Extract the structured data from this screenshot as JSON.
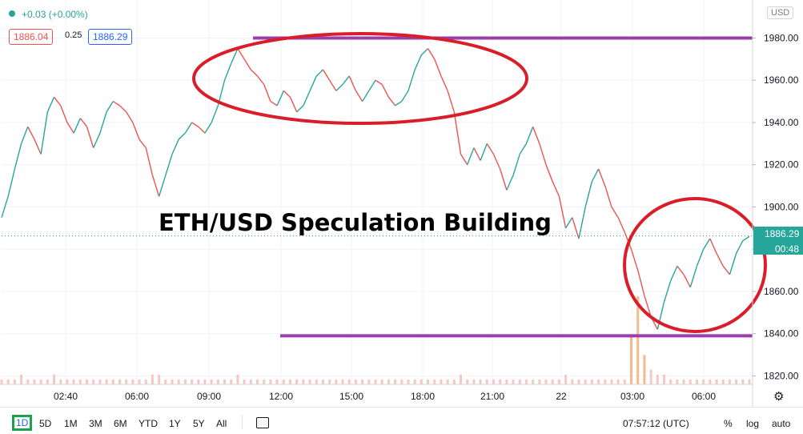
{
  "header": {
    "change": "+0.03 (+0.00%)",
    "bid": "1886.04",
    "spread": "0.25",
    "ask": "1886.29",
    "currency": "USD"
  },
  "annotation": "ETH/USD Speculation Building",
  "price_badge": "1886.29",
  "countdown": "00:48",
  "timeframes": [
    "1D",
    "5D",
    "1M",
    "3M",
    "6M",
    "YTD",
    "1Y",
    "5Y",
    "All"
  ],
  "active_timeframe": "1D",
  "clock": "07:57:12 (UTC)",
  "options": {
    "percent": "%",
    "log": "log",
    "auto": "auto"
  },
  "chart_data": {
    "type": "line",
    "title": "ETH/USD Speculation Building",
    "xlabel": "",
    "ylabel": "",
    "y_ticks": [
      "1820.00",
      "1840.00",
      "1860.00",
      "1880.00",
      "1900.00",
      "1920.00",
      "1940.00",
      "1960.00",
      "1980.00"
    ],
    "x_ticks": [
      "02:40",
      "06:00",
      "09:00",
      "12:00",
      "15:00",
      "18:00",
      "21:00",
      "22",
      "03:00",
      "06:00"
    ],
    "ylim": [
      1816,
      1998
    ],
    "last_price": 1886.29,
    "series": [
      {
        "values": [
          1895,
          1905,
          1918,
          1930,
          1938,
          1932,
          1925,
          1945,
          1952,
          1948,
          1940,
          1935,
          1942,
          1938,
          1928,
          1935,
          1945,
          1950,
          1948,
          1945,
          1940,
          1932,
          1928,
          1915,
          1905,
          1915,
          1925,
          1932,
          1935,
          1940,
          1938,
          1935,
          1940,
          1948,
          1960,
          1968,
          1975,
          1970,
          1965,
          1962,
          1958,
          1950,
          1948,
          1955,
          1952,
          1945,
          1948,
          1955,
          1962,
          1965,
          1960,
          1955,
          1958,
          1962,
          1955,
          1950,
          1955,
          1960,
          1958,
          1952,
          1948,
          1950,
          1955,
          1965,
          1972,
          1975,
          1970,
          1962,
          1955,
          1945,
          1925,
          1920,
          1928,
          1922,
          1930,
          1925,
          1918,
          1908,
          1915,
          1925,
          1930,
          1938,
          1930,
          1920,
          1912,
          1905,
          1890,
          1895,
          1885,
          1900,
          1912,
          1918,
          1910,
          1900,
          1895,
          1888,
          1880,
          1870,
          1858,
          1848,
          1842,
          1855,
          1865,
          1872,
          1868,
          1862,
          1872,
          1880,
          1885,
          1878,
          1872,
          1868,
          1878,
          1884,
          1886
        ]
      }
    ],
    "volume": [
      1,
      1,
      1,
      2,
      1,
      1,
      1,
      1,
      2,
      1,
      1,
      1,
      1,
      1,
      1,
      1,
      1,
      1,
      1,
      1,
      1,
      1,
      1,
      2,
      2,
      1,
      1,
      1,
      1,
      1,
      1,
      1,
      1,
      1,
      1,
      1,
      2,
      1,
      1,
      1,
      1,
      1,
      1,
      1,
      1,
      1,
      1,
      1,
      1,
      1,
      1,
      1,
      1,
      1,
      1,
      1,
      1,
      1,
      1,
      1,
      1,
      1,
      1,
      1,
      1,
      1,
      1,
      1,
      1,
      1,
      2,
      1,
      1,
      1,
      1,
      1,
      1,
      1,
      1,
      1,
      1,
      1,
      1,
      1,
      1,
      1,
      2,
      1,
      1,
      1,
      1,
      1,
      1,
      1,
      1,
      1,
      10,
      18,
      6,
      3,
      2,
      2,
      1,
      1,
      1,
      1,
      1,
      1,
      1,
      1,
      1,
      1,
      1,
      1,
      1
    ],
    "levels": [
      1980,
      1839
    ],
    "grid": true
  }
}
